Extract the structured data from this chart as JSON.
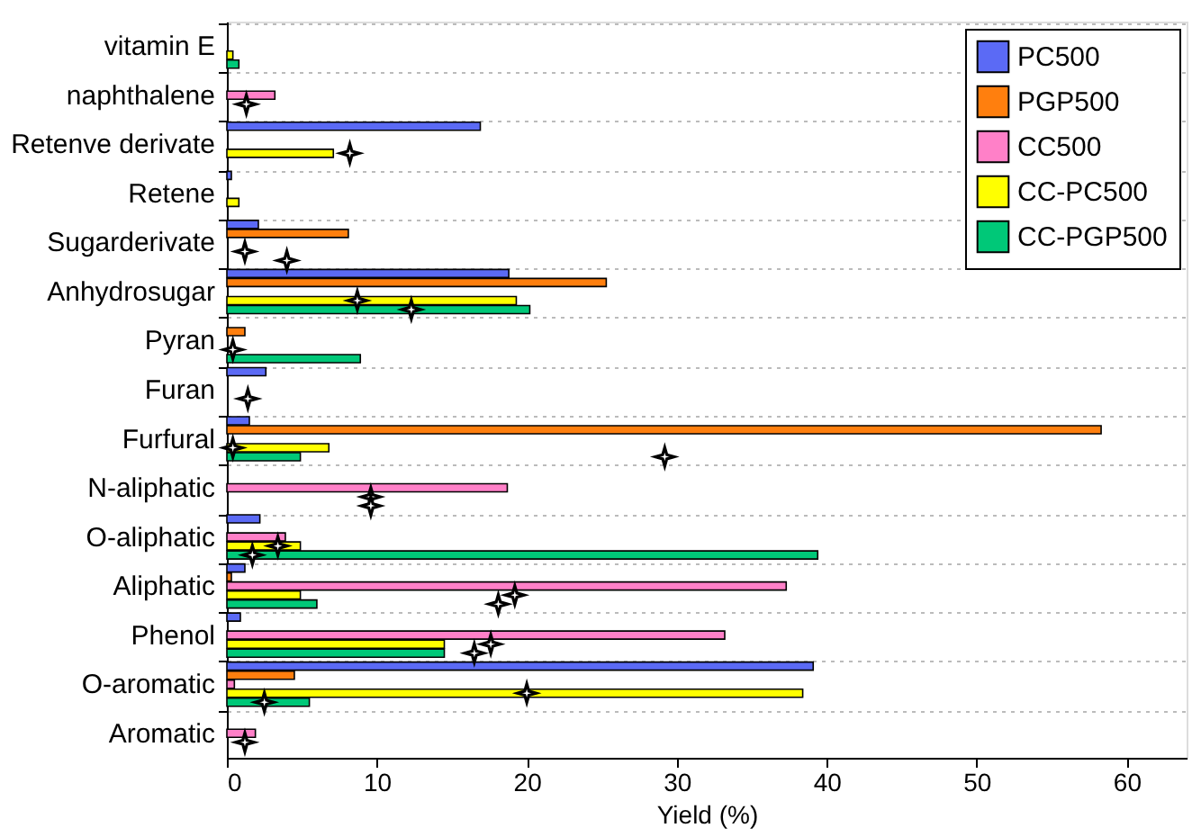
{
  "chart_data": {
    "type": "bar",
    "orientation": "horizontal",
    "xlabel": "Yield (%)",
    "categories": [
      "vitamin E",
      "naphthalene",
      "Retenve derivate",
      "Retene",
      "Sugarderivate",
      "Anhydrosugar",
      "Pyran",
      "Furan",
      "Furfural",
      "N-aliphatic",
      "O-aliphatic",
      "Aliphatic",
      "Phenol",
      "O-aromatic",
      "Aromatic"
    ],
    "series": [
      {
        "name": "PC500",
        "color": "#5b6af5",
        "values": [
          null,
          null,
          16.9,
          0.3,
          2.1,
          18.8,
          null,
          2.6,
          1.5,
          null,
          2.2,
          1.2,
          0.9,
          39.1,
          null
        ]
      },
      {
        "name": "PGP500",
        "color": "#ff7f0e",
        "values": [
          null,
          null,
          null,
          null,
          8.1,
          25.3,
          1.2,
          null,
          58.3,
          null,
          null,
          0.3,
          null,
          4.5,
          null
        ]
      },
      {
        "name": "CC500",
        "color": "#ff80c8",
        "values": [
          null,
          3.2,
          null,
          null,
          null,
          null,
          null,
          null,
          null,
          18.7,
          3.9,
          37.3,
          33.2,
          0.5,
          1.9
        ]
      },
      {
        "name": "CC-PC500",
        "color": "#ffff00",
        "values": [
          0.4,
          null,
          7.1,
          0.8,
          null,
          19.3,
          null,
          null,
          6.8,
          null,
          4.9,
          4.9,
          14.5,
          38.4,
          null
        ]
      },
      {
        "name": "CC-PGP500",
        "color": "#00c878",
        "values": [
          0.8,
          null,
          null,
          null,
          null,
          20.2,
          8.9,
          null,
          4.9,
          null,
          39.4,
          6.0,
          14.5,
          5.5,
          null
        ]
      },
      {
        "type": "scatter",
        "color": "#000000",
        "marker": "star",
        "values": [
          null,
          1.3,
          8.2,
          null,
          1.2,
          8.7,
          0.4,
          1.4,
          0.4,
          9.6,
          3.4,
          19.2,
          17.6,
          20.0,
          1.2
        ]
      },
      {
        "type": "scatter",
        "color": "#000000",
        "marker": "star",
        "values": [
          null,
          null,
          null,
          null,
          4.0,
          12.3,
          null,
          null,
          29.2,
          9.6,
          1.7,
          18.1,
          16.5,
          2.5,
          null
        ]
      }
    ],
    "xlim": [
      0,
      64
    ],
    "xticks": [
      0,
      10,
      20,
      30,
      40,
      50,
      60
    ],
    "grid": "y",
    "legend": "top right"
  }
}
